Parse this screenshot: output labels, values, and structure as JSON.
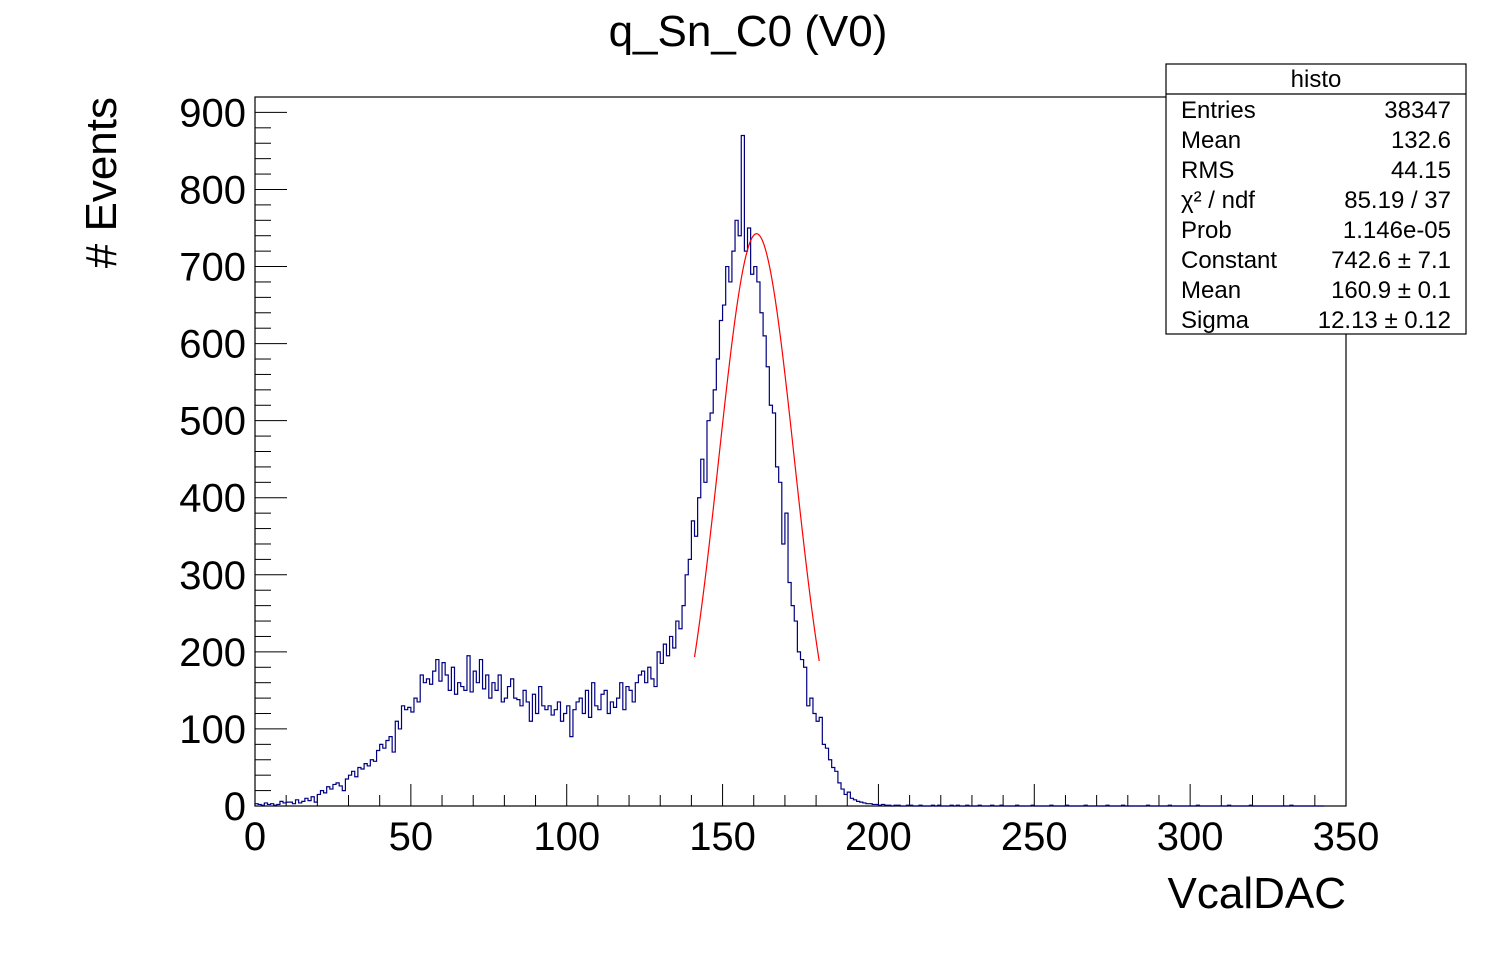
{
  "chart_data": {
    "type": "histogram",
    "title": "q_Sn_C0 (V0)",
    "xlabel": "VcalDAC",
    "ylabel": "# Events",
    "xlim": [
      0,
      350
    ],
    "ylim": [
      0,
      920
    ],
    "bin_width": 1,
    "x_ticks": [
      "0",
      "50",
      "100",
      "150",
      "200",
      "250",
      "300",
      "350"
    ],
    "y_ticks": [
      "0",
      "100",
      "200",
      "300",
      "400",
      "500",
      "600",
      "700",
      "800",
      "900"
    ],
    "series": [
      {
        "color": "#000080",
        "x_start": 0,
        "values": [
          3,
          2,
          1,
          4,
          2,
          3,
          1,
          2,
          6,
          4,
          5,
          5,
          3,
          8,
          4,
          6,
          10,
          7,
          12,
          5,
          15,
          20,
          17,
          25,
          22,
          28,
          30,
          26,
          20,
          35,
          40,
          45,
          38,
          50,
          48,
          55,
          52,
          60,
          58,
          72,
          80,
          75,
          85,
          90,
          70,
          110,
          100,
          130,
          125,
          128,
          122,
          140,
          135,
          170,
          160,
          165,
          158,
          175,
          190,
          162,
          186,
          170,
          150,
          180,
          145,
          160,
          155,
          150,
          195,
          148,
          175,
          160,
          190,
          152,
          170,
          140,
          160,
          150,
          170,
          135,
          140,
          155,
          165,
          140,
          138,
          130,
          150,
          135,
          110,
          145,
          120,
          155,
          130,
          125,
          130,
          118,
          125,
          135,
          110,
          120,
          130,
          90,
          125,
          135,
          140,
          120,
          150,
          115,
          160,
          130,
          125,
          145,
          150,
          120,
          135,
          128,
          140,
          160,
          125,
          155,
          150,
          135,
          160,
          170,
          175,
          160,
          180,
          165,
          155,
          200,
          185,
          210,
          195,
          220,
          205,
          240,
          230,
          260,
          300,
          320,
          370,
          350,
          400,
          450,
          420,
          500,
          510,
          540,
          580,
          630,
          650,
          700,
          680,
          720,
          760,
          740,
          870,
          720,
          750,
          690,
          700,
          680,
          640,
          610,
          570,
          520,
          510,
          440,
          420,
          340,
          380,
          290,
          260,
          240,
          200,
          190,
          180,
          130,
          140,
          120,
          110,
          115,
          80,
          75,
          60,
          50,
          45,
          30,
          22,
          15,
          18,
          10,
          8,
          6,
          5,
          4,
          3,
          3,
          2,
          2,
          1,
          2,
          1,
          1,
          0,
          1,
          1,
          0,
          0,
          1,
          1,
          0,
          0,
          1,
          0,
          0,
          0,
          1,
          0,
          1,
          0,
          0,
          0,
          1,
          0,
          1,
          0,
          0,
          1,
          0,
          0,
          0,
          1,
          0,
          0,
          0,
          1,
          0,
          0,
          1,
          0,
          0,
          0,
          0,
          1,
          0,
          0,
          0,
          0,
          1,
          0,
          0,
          0,
          0,
          0,
          1,
          0,
          0,
          0,
          0,
          1,
          0,
          0,
          0,
          0,
          0,
          1,
          0,
          0,
          0,
          0,
          0,
          0,
          1,
          0,
          0,
          0,
          0,
          1,
          0,
          0,
          0,
          0,
          0,
          0,
          0,
          1,
          0,
          0,
          0,
          0,
          0,
          0,
          1,
          0,
          0,
          0,
          0,
          0,
          0,
          0,
          0,
          1,
          0,
          0,
          0,
          0,
          0,
          0,
          0,
          0,
          0,
          1,
          0,
          0,
          0,
          0,
          0,
          0,
          1,
          0,
          0,
          0,
          0,
          0,
          0,
          0,
          0,
          0,
          0,
          0,
          0,
          1,
          0,
          0,
          0,
          0,
          0,
          0,
          0,
          0,
          0,
          0
        ]
      },
      {
        "type": "line",
        "color": "#ff0000",
        "fit": "gaus",
        "constant": 742.6,
        "mean": 160.9,
        "sigma": 12.13,
        "x_range": [
          141,
          181
        ]
      }
    ],
    "legend": "top-right"
  },
  "stats_box": {
    "title": "histo",
    "rows": [
      {
        "label": "Entries",
        "value": "38347"
      },
      {
        "label": "Mean",
        "value": "132.6"
      },
      {
        "label": "RMS",
        "value": "44.15"
      },
      {
        "label": "χ² / ndf",
        "value": "85.19 / 37"
      },
      {
        "label": "Prob",
        "value": "1.146e-05"
      },
      {
        "label": "Constant",
        "value": "742.6 ± 7.1"
      },
      {
        "label": "Mean",
        "value": "160.9 ± 0.1"
      },
      {
        "label": "Sigma",
        "value": "12.13 ± 0.12"
      }
    ]
  }
}
